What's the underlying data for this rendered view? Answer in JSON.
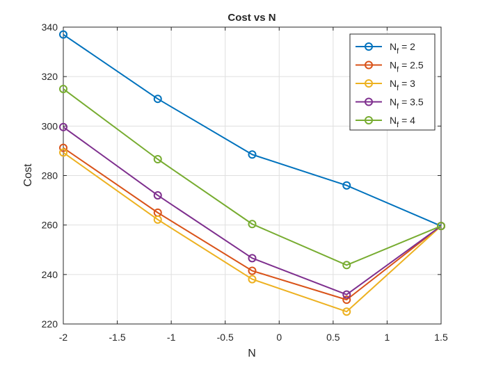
{
  "chart_data": {
    "type": "line",
    "title": "Cost vs N",
    "xlabel": "N",
    "ylabel": "Cost",
    "xlim": [
      -2,
      1.5
    ],
    "ylim": [
      220,
      340
    ],
    "xticks": [
      -2,
      -1.5,
      -1,
      -0.5,
      0,
      0.5,
      1,
      1.5
    ],
    "xtick_labels": [
      "-2",
      "-1.5",
      "-1",
      "-0.5",
      "0",
      "0.5",
      "1",
      "1.5"
    ],
    "yticks": [
      220,
      240,
      260,
      280,
      300,
      320,
      340
    ],
    "ytick_labels": [
      "220",
      "240",
      "260",
      "280",
      "300",
      "320",
      "340"
    ],
    "grid": true,
    "legend_position": "top-right",
    "marker": "circle",
    "x": [
      -2,
      -1.125,
      -0.25,
      0.625,
      1.5
    ],
    "series": [
      {
        "name_base": "N",
        "name_sub": "f",
        "name_rest": " = 2",
        "color": "#0072BD",
        "values": [
          337,
          311,
          288.5,
          276,
          259.6
        ]
      },
      {
        "name_base": "N",
        "name_sub": "f",
        "name_rest": " = 2.5",
        "color": "#D95319",
        "values": [
          291.2,
          265,
          241.5,
          229.8,
          259.6
        ]
      },
      {
        "name_base": "N",
        "name_sub": "f",
        "name_rest": " = 3",
        "color": "#EDB120",
        "values": [
          289.3,
          262.2,
          238.1,
          225,
          259.6
        ]
      },
      {
        "name_base": "N",
        "name_sub": "f",
        "name_rest": " = 3.5",
        "color": "#7E2F8E",
        "values": [
          299.6,
          272,
          246.6,
          231.9,
          259.6
        ]
      },
      {
        "name_base": "N",
        "name_sub": "f",
        "name_rest": " = 4",
        "color": "#77AC30",
        "values": [
          315,
          286.6,
          260.4,
          243.8,
          259.6
        ]
      }
    ]
  }
}
